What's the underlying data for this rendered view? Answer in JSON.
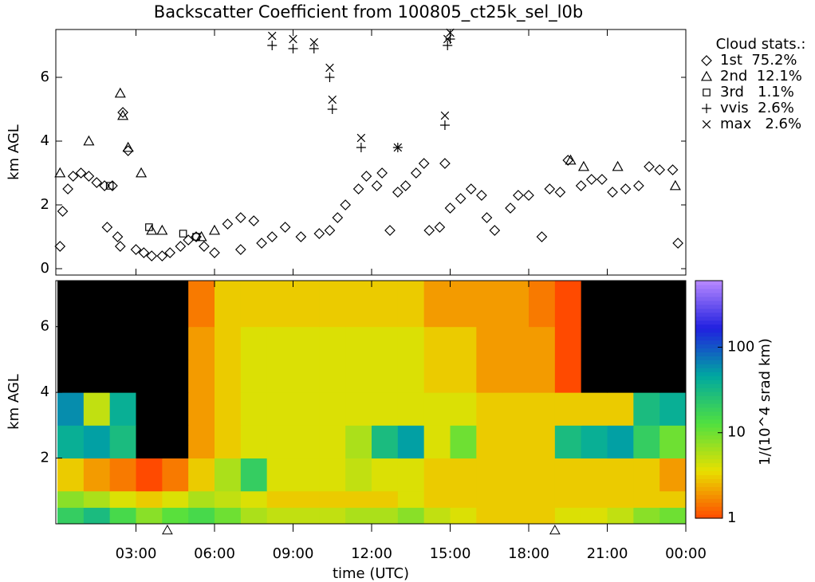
{
  "chart_data": [
    {
      "type": "scatter",
      "title": "Backscatter Coefficient from 100805_ct25k_sel_l0b",
      "ylabel": "km AGL",
      "ylim": [
        -0.2,
        7.5
      ],
      "yticks": [
        0,
        2,
        4,
        6
      ],
      "xlim": [
        0,
        24
      ],
      "legend_title": "Cloud stats.:",
      "legend": "outside-right",
      "series": [
        {
          "name": "1st  75.2%",
          "marker": "diamond",
          "color": "#000000",
          "x": [
            0.1,
            0.2,
            0.4,
            0.6,
            0.9,
            1.2,
            1.5,
            1.8,
            2.1,
            1.9,
            2.3,
            2.4,
            2.5,
            2.7,
            3.0,
            3.3,
            3.6,
            4.0,
            4.3,
            4.7,
            5.0,
            5.3,
            5.6,
            6.0,
            6.5,
            7.0,
            7.5,
            7.0,
            7.8,
            8.2,
            8.7,
            9.3,
            10.0,
            10.4,
            10.7,
            11.0,
            11.5,
            11.8,
            12.2,
            12.4,
            12.7,
            13.0,
            13.3,
            13.7,
            14.0,
            14.2,
            14.6,
            14.8,
            15.0,
            15.4,
            15.8,
            16.2,
            16.4,
            16.7,
            17.3,
            17.6,
            18.0,
            18.5,
            18.8,
            19.2,
            19.5,
            20.0,
            20.4,
            20.8,
            21.2,
            21.7,
            22.2,
            22.6,
            23.0,
            23.5,
            23.7
          ],
          "values": [
            0.7,
            1.8,
            2.5,
            2.9,
            3.0,
            2.9,
            2.7,
            2.6,
            2.6,
            1.3,
            1.0,
            0.7,
            4.9,
            3.7,
            0.6,
            0.5,
            0.4,
            0.4,
            0.5,
            0.7,
            0.9,
            1.0,
            0.7,
            0.5,
            1.4,
            1.6,
            1.5,
            0.6,
            0.8,
            1.0,
            1.3,
            1.0,
            1.1,
            1.2,
            1.6,
            2.0,
            2.5,
            2.9,
            2.6,
            3.0,
            1.2,
            2.4,
            2.6,
            3.0,
            3.3,
            1.2,
            1.3,
            3.3,
            1.9,
            2.2,
            2.5,
            2.3,
            1.6,
            1.2,
            1.9,
            2.3,
            2.3,
            1.0,
            2.5,
            2.4,
            3.4,
            2.6,
            2.8,
            2.8,
            2.4,
            2.5,
            2.6,
            3.2,
            3.1,
            3.1,
            0.8
          ]
        },
        {
          "name": "2nd  12.1%",
          "marker": "triangle",
          "color": "#000000",
          "x": [
            0.1,
            1.2,
            2.4,
            2.5,
            2.7,
            3.2,
            3.6,
            4.0,
            5.5,
            6.0,
            19.6,
            20.1,
            21.4,
            23.6
          ],
          "values": [
            3.0,
            4.0,
            5.5,
            4.8,
            3.8,
            3.0,
            1.2,
            1.2,
            1.0,
            1.2,
            3.4,
            3.2,
            3.2,
            2.6
          ]
        },
        {
          "name": "3rd   1.1%",
          "marker": "square",
          "color": "#000000",
          "x": [
            2.0,
            3.5,
            4.8,
            5.3
          ],
          "values": [
            2.6,
            1.3,
            1.1,
            1.0
          ]
        },
        {
          "name": "vvis  2.6%",
          "marker": "plus",
          "color": "#000000",
          "x": [
            8.2,
            9.0,
            9.8,
            10.4,
            10.5,
            11.6,
            13.0,
            14.8,
            14.9,
            15.0
          ],
          "values": [
            7.0,
            6.9,
            6.9,
            6.0,
            5.0,
            3.8,
            3.8,
            4.5,
            7.0,
            7.2
          ]
        },
        {
          "name": "max   2.6%",
          "marker": "x",
          "color": "#000000",
          "x": [
            8.2,
            9.0,
            9.8,
            10.4,
            10.5,
            11.6,
            13.0,
            14.8,
            14.9,
            15.0
          ],
          "values": [
            7.3,
            7.2,
            7.1,
            6.3,
            5.3,
            4.1,
            3.8,
            4.8,
            7.2,
            7.4
          ]
        }
      ]
    },
    {
      "type": "heatmap",
      "ylabel": "km AGL",
      "xlabel": "time (UTC)",
      "ylim": [
        0,
        7.4
      ],
      "yticks": [
        2,
        4,
        6
      ],
      "xlim": [
        0,
        24
      ],
      "xticks": [
        {
          "value": 3,
          "label": "03:00"
        },
        {
          "value": 6,
          "label": "06:00"
        },
        {
          "value": 9,
          "label": "09:00"
        },
        {
          "value": 12,
          "label": "12:00"
        },
        {
          "value": 15,
          "label": "15:00"
        },
        {
          "value": 18,
          "label": "18:00"
        },
        {
          "value": 21,
          "label": "21:00"
        },
        {
          "value": 24,
          "label": "00:00"
        }
      ],
      "x_edges": [
        0,
        1,
        2,
        3,
        4,
        5,
        6,
        7,
        8,
        9,
        10,
        11,
        12,
        13,
        14,
        15,
        16,
        17,
        18,
        19,
        20,
        21,
        22,
        23,
        24
      ],
      "y_edges": [
        0,
        0.5,
        1,
        2,
        3,
        4,
        5,
        6,
        7.4
      ],
      "z": [
        [
          20,
          30,
          15,
          8,
          12,
          15,
          10,
          6,
          5,
          5,
          5,
          6,
          6,
          8,
          5,
          4,
          3,
          3,
          3,
          4,
          4,
          5,
          8,
          10
        ],
        [
          8,
          6,
          4,
          3,
          4,
          6,
          5,
          4,
          3,
          3,
          3,
          3,
          3,
          4,
          3,
          3,
          3,
          3,
          3,
          3,
          3,
          3,
          3,
          3
        ],
        [
          3,
          2,
          1.5,
          1,
          1.5,
          3,
          6,
          20,
          4,
          4,
          4,
          5,
          4,
          4,
          3,
          3,
          3,
          3,
          3,
          3,
          3,
          3,
          3,
          2
        ],
        [
          40,
          50,
          30,
          0.5,
          0.5,
          2,
          3,
          4,
          4,
          4,
          4,
          6,
          30,
          50,
          4,
          10,
          3,
          3,
          3,
          30,
          40,
          50,
          20,
          10
        ],
        [
          60,
          5,
          40,
          0.5,
          0.5,
          2,
          3,
          4,
          4,
          4,
          4,
          4,
          4,
          4,
          4,
          4,
          3,
          3,
          3,
          3,
          3,
          3,
          30,
          40
        ],
        [
          0.5,
          0.5,
          0.8,
          0.5,
          0.5,
          2,
          3,
          4,
          4,
          4,
          4,
          4,
          4,
          4,
          3,
          3,
          2,
          2,
          2,
          1,
          0.5,
          0.5,
          0.5,
          0.5
        ],
        [
          0.5,
          0.5,
          0.6,
          0.5,
          0.5,
          2,
          3,
          4,
          4,
          4,
          4,
          4,
          4,
          4,
          3,
          3,
          2,
          2,
          2,
          1,
          0.5,
          0.5,
          0.5,
          0.5
        ],
        [
          0.5,
          0.5,
          0.5,
          0.5,
          0.5,
          1.5,
          3,
          3,
          3,
          3,
          3,
          3,
          3,
          3,
          2,
          2,
          2,
          2,
          1.5,
          1,
          0.5,
          0.5,
          0.5,
          0.5
        ]
      ],
      "log_scale": true,
      "zlim": [
        1,
        600
      ],
      "zticks": [
        1,
        10,
        100
      ],
      "zlabel": "1/(10^4 srad km)",
      "colorscale": [
        "#ff4a00",
        "#e8e000",
        "#50e040",
        "#00a8a0",
        "#2020e0",
        "#b888ff"
      ],
      "under_color": "#000000",
      "markers_x": [
        4.2,
        19.0
      ]
    }
  ]
}
